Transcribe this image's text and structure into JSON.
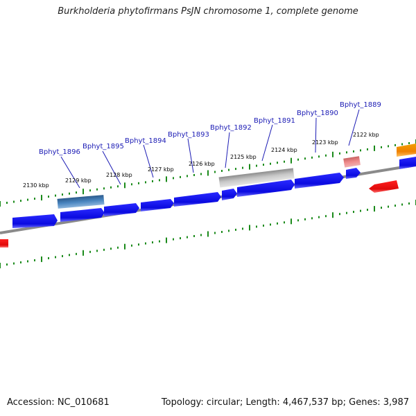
{
  "header": {
    "title": "Burkholderia phytofirmans PsJN chromosome 1, complete genome"
  },
  "footer": {
    "accession": "Accession: NC_010681",
    "summary": "Topology: circular; Length: 4,467,537 bp; Genes: 3,987"
  },
  "colors": {
    "gene_forward": "#0a0ae6",
    "gene_reverse": "#e61010",
    "gene_light_red": "#e87878",
    "gene_orange": "#f08a00",
    "gene_steelblue": "#3c78b4",
    "gene_gray": "#b4b4b4",
    "tick": "#1a8a1a",
    "backbone": "#8a8a8a"
  },
  "tracks": {
    "kbp_labels": [
      "2130 kbp",
      "2129 kbp",
      "2128 kbp",
      "2127 kbp",
      "2126 kbp",
      "2125 kbp",
      "2124 kbp",
      "2123 kbp",
      "2122 kbp"
    ],
    "gene_labels": [
      "Bphyt_1896",
      "Bphyt_1895",
      "Bphyt_1894",
      "Bphyt_1893",
      "Bphyt_1892",
      "Bphyt_1891",
      "Bphyt_1890",
      "Bphyt_1889"
    ]
  }
}
